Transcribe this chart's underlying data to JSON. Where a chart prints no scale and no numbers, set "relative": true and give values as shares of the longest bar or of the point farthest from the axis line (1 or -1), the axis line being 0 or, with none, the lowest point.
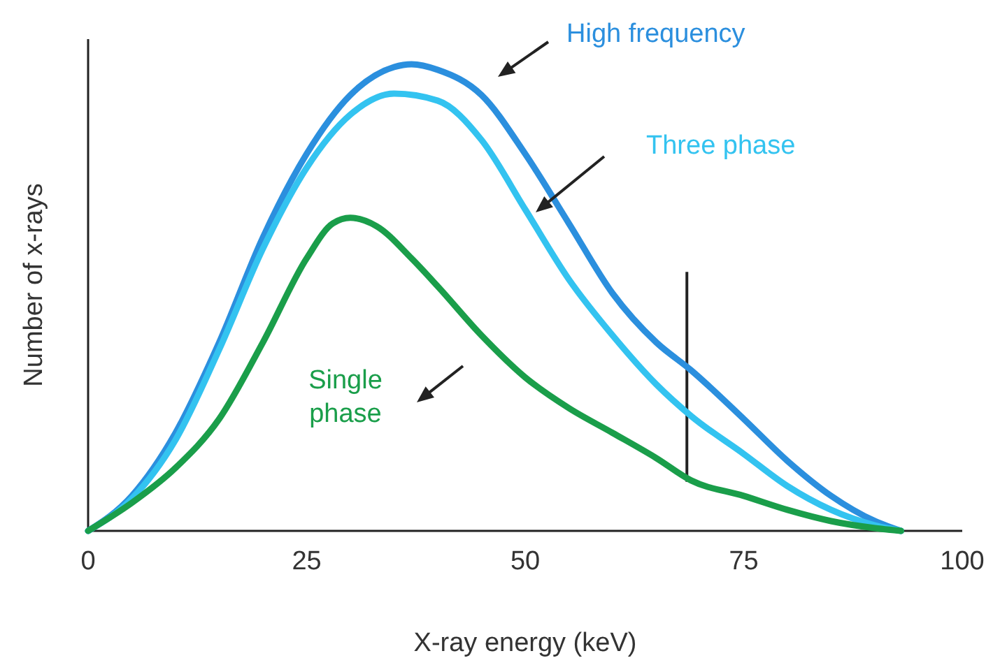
{
  "chart_data": {
    "type": "line",
    "relative": true,
    "xlabel": "X-ray energy (keV)",
    "ylabel": "Number of x-rays",
    "xlim": [
      0,
      100
    ],
    "xticks": [
      0,
      25,
      50,
      75,
      100
    ],
    "grid": false,
    "legend": false,
    "marker": "none",
    "line_style": "solid",
    "ref_lines": [
      {
        "axis": "x",
        "value": 68.5,
        "color": "#222222"
      }
    ],
    "series": [
      {
        "name": "High frequency",
        "color": "#2b8fde",
        "x": [
          0,
          5,
          10,
          15,
          20,
          25,
          30,
          35,
          37,
          40,
          45,
          50,
          55,
          60,
          65,
          69,
          75,
          80,
          85,
          90,
          93
        ],
        "values": [
          0,
          0.075,
          0.21,
          0.404,
          0.629,
          0.808,
          0.934,
          0.994,
          1.0,
          0.988,
          0.934,
          0.808,
          0.659,
          0.509,
          0.404,
          0.344,
          0.24,
          0.15,
          0.075,
          0.021,
          0
        ]
      },
      {
        "name": "Three phase",
        "color": "#33c3f0",
        "x": [
          0,
          5,
          10,
          15,
          20,
          25,
          30,
          35,
          40,
          45,
          50,
          55,
          60,
          65,
          69,
          75,
          80,
          85,
          90,
          93
        ],
        "values": [
          0,
          0.069,
          0.195,
          0.389,
          0.605,
          0.778,
          0.892,
          0.937,
          0.922,
          0.838,
          0.689,
          0.539,
          0.419,
          0.314,
          0.246,
          0.165,
          0.096,
          0.045,
          0.012,
          0
        ]
      },
      {
        "name": "Single phase",
        "color": "#1a9e4a",
        "x": [
          0,
          5,
          10,
          15,
          20,
          25,
          28,
          30,
          33,
          37,
          40,
          45,
          50,
          55,
          60,
          65,
          69,
          75,
          80,
          85,
          90,
          93
        ],
        "values": [
          0,
          0.06,
          0.135,
          0.24,
          0.404,
          0.584,
          0.659,
          0.671,
          0.653,
          0.584,
          0.524,
          0.419,
          0.329,
          0.263,
          0.21,
          0.156,
          0.108,
          0.075,
          0.045,
          0.021,
          0.006,
          0
        ]
      }
    ]
  }
}
